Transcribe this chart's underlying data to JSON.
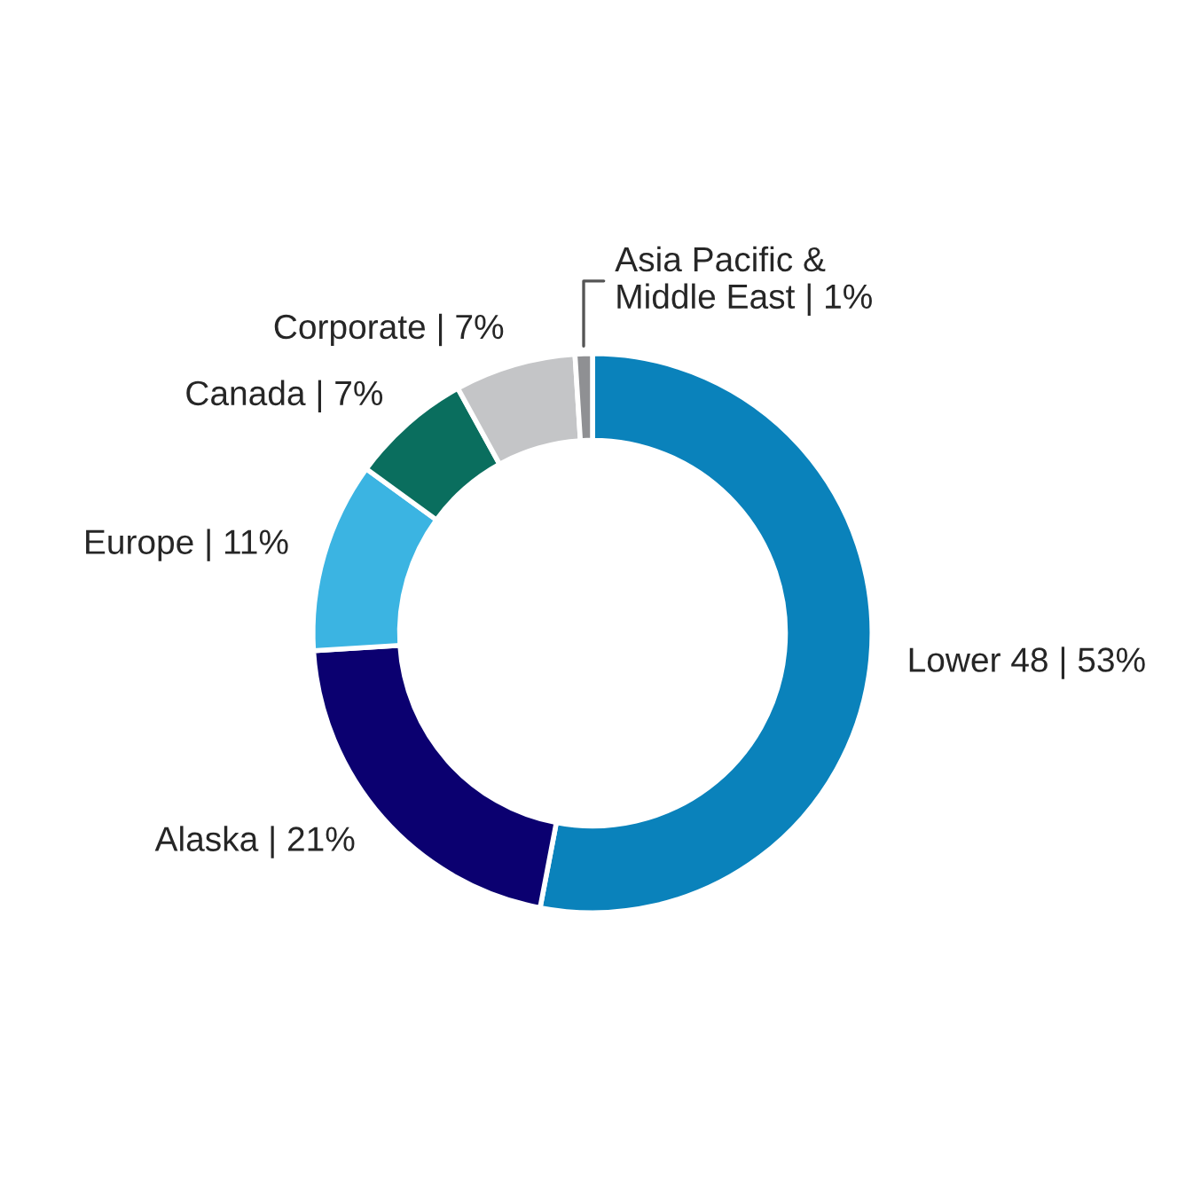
{
  "chart_data": {
    "type": "donut",
    "categories": [
      "Lower 48 | 53%",
      "Alaska | 21%",
      "Europe | 11%",
      "Canada | 7%",
      "Corporate | 7%",
      "Asia Pacific &\nMiddle East | 1%"
    ],
    "values": [
      53,
      21,
      11,
      7,
      7,
      1
    ],
    "colors": [
      "#0a82bb",
      "#0b0070",
      "#3bb4e2",
      "#0a6e5e",
      "#c4c5c7",
      "#8f9093"
    ],
    "legend": false
  }
}
